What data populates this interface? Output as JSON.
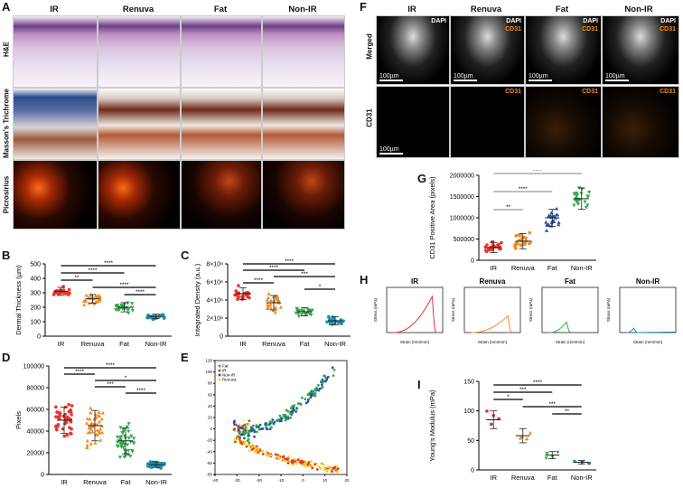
{
  "panels": {
    "A": "A",
    "B": "B",
    "C": "C",
    "D": "D",
    "E": "E",
    "F": "F",
    "G": "G",
    "H": "H",
    "I": "I"
  },
  "groups": [
    "IR",
    "Renuva",
    "Fat",
    "Non-IR"
  ],
  "panel_a": {
    "col_headers": [
      "IR",
      "Renuva",
      "Fat",
      "Non-IR"
    ],
    "row_headers": [
      "H&E",
      "Masson's Trichrome",
      "Picrosirius"
    ]
  },
  "panel_f": {
    "col_headers": [
      "IR",
      "Renuva",
      "Fat",
      "Non-IR"
    ],
    "row_headers": [
      "Merged",
      "CD31"
    ],
    "dapi_label": "DAPI",
    "cd31_label": "CD31",
    "scale_label": "100µm"
  },
  "colors": {
    "IR": "#e8342c",
    "Renuva": "#f08a24",
    "Fat": "#2fa84a",
    "Non-IR": "#1f8fb0",
    "G_IR": "#e8342c",
    "G_Renuva": "#f08a24",
    "G_Fat": "#2b53a6",
    "G_Non-IR": "#2fa84a",
    "sig_gray": "#999999"
  },
  "chart_data": [
    {
      "id": "B",
      "type": "scatter",
      "ylabel": "Dermal Thickness (µm)",
      "categories": [
        "IR",
        "Renuva",
        "Fat",
        "Non-IR"
      ],
      "ylim": [
        0,
        500
      ],
      "yticks": [
        "0",
        "100",
        "200",
        "300",
        "400",
        "500"
      ],
      "means": [
        310,
        258,
        200,
        137
      ],
      "sd": [
        28,
        30,
        32,
        15
      ],
      "significance": [
        "****",
        "****",
        "**",
        "****",
        "****"
      ]
    },
    {
      "id": "C",
      "type": "scatter",
      "ylabel": "Integrated Density (a.u.)",
      "categories": [
        "IR",
        "Renuva",
        "Fat",
        "Non-IR"
      ],
      "ylim": [
        0,
        8000000
      ],
      "yticks": [
        "0",
        "2×10⁶",
        "4×10⁶",
        "6×10⁶",
        "8×10⁶"
      ],
      "means": [
        4700000,
        3700000,
        2700000,
        1700000
      ],
      "sd": [
        650000,
        800000,
        450000,
        450000
      ],
      "significance": [
        "****",
        "****",
        "***",
        "****",
        "*"
      ]
    },
    {
      "id": "D",
      "type": "scatter",
      "ylabel": "Pixels",
      "categories": [
        "IR",
        "Renuva",
        "Fat",
        "Non-IR"
      ],
      "ylim": [
        0,
        100000
      ],
      "yticks": [
        "0",
        "20000",
        "40000",
        "60000",
        "80000",
        "100000"
      ],
      "means": [
        50000,
        45000,
        31000,
        9000
      ],
      "sd": [
        12000,
        14000,
        12000,
        2500
      ],
      "significance": [
        "****",
        "****",
        "*",
        "***",
        "****"
      ]
    },
    {
      "id": "E",
      "type": "scatter",
      "xlim": [
        -40,
        20
      ],
      "ylim": [
        -80,
        120
      ],
      "xticks": [
        "-40",
        "-30",
        "-20",
        "-10",
        "0",
        "10",
        "20"
      ],
      "yticks": [
        "-80",
        "-60",
        "-40",
        "-20",
        "0",
        "20",
        "40",
        "60",
        "80",
        "100",
        "120"
      ],
      "legend": [
        "Fat",
        "IR",
        "Non-IR",
        "Renuva"
      ]
    },
    {
      "id": "G",
      "type": "scatter",
      "ylabel": "CD31 Positive Area (pixels)",
      "categories": [
        "IR",
        "Renuva",
        "Fat",
        "Non-IR"
      ],
      "ylim": [
        0,
        2000000
      ],
      "yticks": [
        "0",
        "500000",
        "1000000",
        "1500000",
        "2000000"
      ],
      "means": [
        300000,
        450000,
        1000000,
        1450000
      ],
      "sd": [
        120000,
        180000,
        200000,
        250000
      ],
      "significance": [
        "****",
        "****",
        "**"
      ]
    },
    {
      "id": "H",
      "type": "line",
      "titles": [
        "IR",
        "Renuva",
        "Fat",
        "Non-IR"
      ],
      "xlabel": "Strain (mm/mm)",
      "ylabel": "Stress (mPa)",
      "peaks": [
        {
          "strain": 0.65,
          "stress": 120
        },
        {
          "strain": 0.62,
          "stress": 55
        },
        {
          "strain": 0.35,
          "stress": 35
        },
        {
          "strain": 0.2,
          "stress": 15
        }
      ]
    },
    {
      "id": "I",
      "type": "scatter",
      "ylabel": "Young's Modulus (mPa)",
      "categories": [
        "IR",
        "Renuva",
        "Fat",
        "Non-IR"
      ],
      "ylim": [
        0,
        150
      ],
      "yticks": [
        "0",
        "50",
        "100",
        "150"
      ],
      "means": [
        85,
        58,
        25,
        13
      ],
      "sd": [
        15,
        12,
        6,
        3
      ],
      "significance": [
        "****",
        "***",
        "*",
        "***",
        "**"
      ]
    }
  ]
}
